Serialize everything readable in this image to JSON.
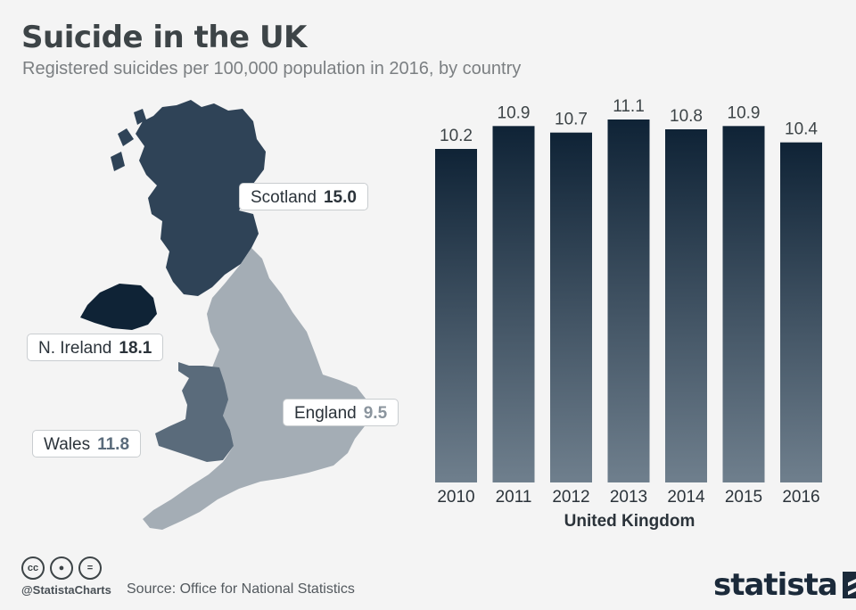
{
  "header": {
    "title": "Suicide in the UK",
    "subtitle": "Registered suicides per 100,000 population in 2016, by country"
  },
  "map": {
    "regions": [
      {
        "name": "Scotland",
        "value": "15.0",
        "color": "#2f4357"
      },
      {
        "name": "N. Ireland",
        "value": "18.1",
        "color": "#0f2336"
      },
      {
        "name": "Wales",
        "value": "11.8",
        "color": "#5a6b7b"
      },
      {
        "name": "England",
        "value": "9.5",
        "color": "#a4adb5"
      }
    ]
  },
  "chart_data": {
    "type": "bar",
    "categories": [
      "2010",
      "2011",
      "2012",
      "2013",
      "2014",
      "2015",
      "2016"
    ],
    "values": [
      10.2,
      10.9,
      10.7,
      11.1,
      10.8,
      10.9,
      10.4
    ],
    "data_labels": [
      "10.2",
      "10.9",
      "10.7",
      "11.1",
      "10.8",
      "10.9",
      "10.4"
    ],
    "title": "",
    "xlabel": "United Kingdom",
    "ylabel": "",
    "ylim": [
      0,
      11.1
    ],
    "grid": false,
    "bar_gradient": [
      "#0f2336",
      "#6f7f8d"
    ]
  },
  "footer": {
    "handle": "@StatistaCharts",
    "source": "Source: Office for National Statistics",
    "logo": "statista",
    "license_icons": [
      "cc-icon",
      "by-icon",
      "nd-icon"
    ]
  }
}
